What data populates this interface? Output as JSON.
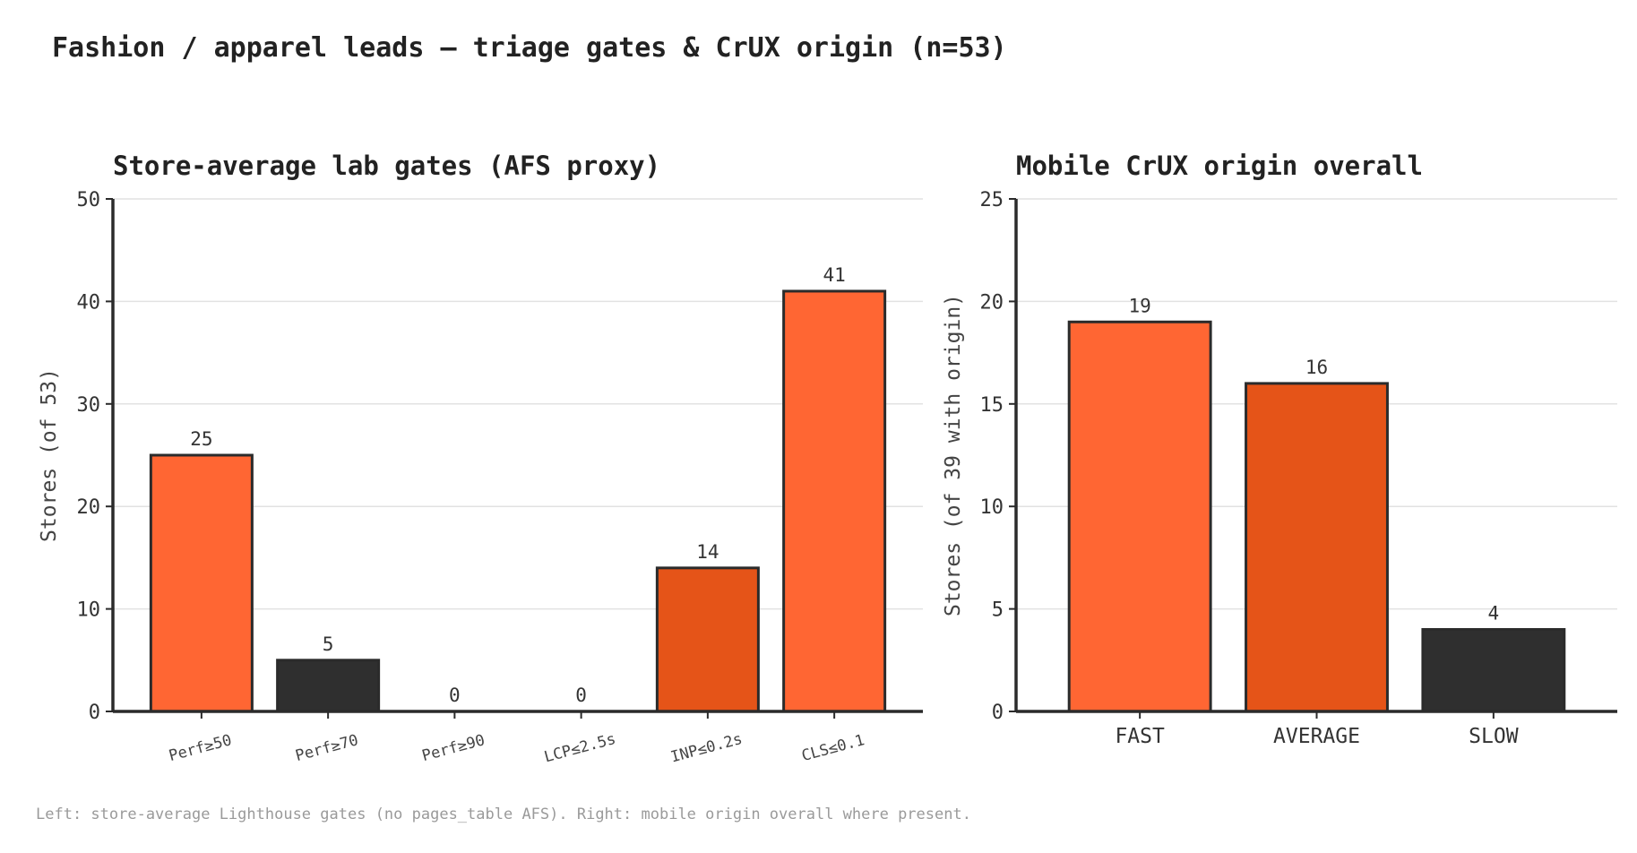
{
  "title": "Fashion / apparel leads — triage gates & CrUX origin (n=53)",
  "footnote": "Left: store-average Lighthouse gates (no pages_table AFS). Right: mobile origin overall where present.",
  "chart_data": [
    {
      "type": "bar",
      "title": "Store-average lab gates (AFS proxy)",
      "xlabel": "",
      "ylabel": "Stores (of 53)",
      "categories": [
        "Perf≥50",
        "Perf≥70",
        "Perf≥90",
        "LCP≤2.5s",
        "INP≤0.2s",
        "CLS≤0.1"
      ],
      "values": [
        25,
        5,
        0,
        0,
        14,
        41
      ],
      "value_labels": [
        "25",
        "5",
        "0",
        "0",
        "14",
        "41"
      ],
      "colors": [
        "#ff6633",
        "#2f2f2f",
        "#ff6633",
        "#ff6633",
        "#e55418",
        "#ff6633"
      ],
      "ylim": [
        0,
        50
      ],
      "yticks": [
        0,
        10,
        20,
        30,
        40,
        50
      ],
      "ytick_labels": [
        "0",
        "10",
        "20",
        "30",
        "40",
        "50"
      ],
      "grid": "y",
      "x_tick_rotation_deg": -15
    },
    {
      "type": "bar",
      "title": "Mobile CrUX origin overall",
      "xlabel": "",
      "ylabel": "Stores (of 39 with origin)",
      "categories": [
        "FAST",
        "AVERAGE",
        "SLOW"
      ],
      "values": [
        19,
        16,
        4
      ],
      "value_labels": [
        "19",
        "16",
        "4"
      ],
      "colors": [
        "#ff6633",
        "#e55418",
        "#2f2f2f"
      ],
      "ylim": [
        0,
        25
      ],
      "yticks": [
        0,
        5,
        10,
        15,
        20,
        25
      ],
      "ytick_labels": [
        "0",
        "5",
        "10",
        "15",
        "20",
        "25"
      ],
      "grid": "y",
      "x_tick_rotation_deg": 0
    }
  ]
}
